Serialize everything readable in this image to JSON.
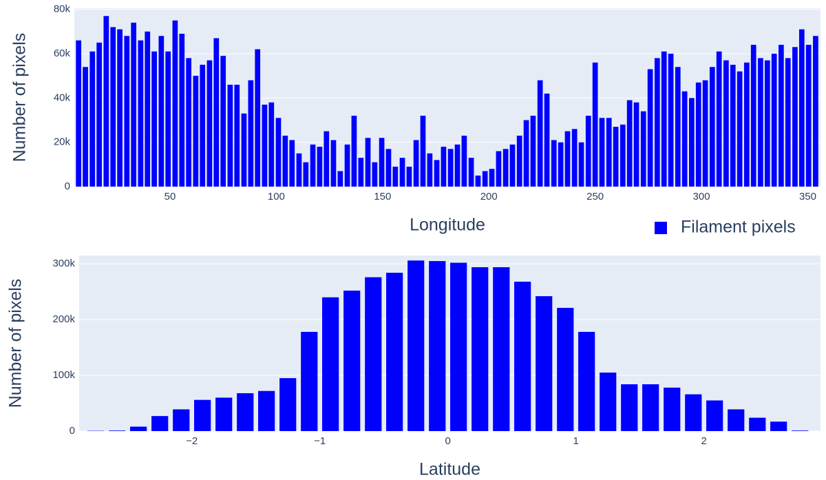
{
  "chart_data": [
    {
      "type": "bar",
      "xlabel": "Longitude",
      "ylabel": "Number of pixels",
      "grid": true,
      "legend": "bottom-right",
      "x": [
        7.0,
        10.2,
        13.5,
        16.7,
        20.0,
        23.2,
        26.4,
        29.7,
        32.9,
        36.2,
        39.4,
        42.6,
        45.9,
        49.1,
        52.4,
        55.6,
        58.8,
        62.1,
        65.3,
        68.6,
        71.8,
        75.0,
        78.3,
        81.5,
        84.8,
        88.0,
        91.2,
        94.5,
        97.7,
        101.0,
        104.2,
        107.4,
        110.7,
        113.9,
        117.2,
        120.4,
        123.6,
        126.9,
        130.1,
        133.4,
        136.6,
        139.8,
        143.1,
        146.3,
        149.6,
        152.8,
        156.0,
        159.3,
        162.5,
        165.8,
        169.0,
        172.2,
        175.5,
        178.7,
        182.0,
        185.2,
        188.4,
        191.7,
        194.9,
        198.2,
        201.4,
        204.6,
        207.9,
        211.1,
        214.4,
        217.6,
        220.8,
        224.1,
        227.3,
        230.6,
        233.8,
        237.0,
        240.3,
        243.5,
        246.8,
        250.0,
        253.2,
        256.5,
        259.7,
        263.0,
        266.2,
        269.4,
        272.7,
        275.9,
        279.2,
        282.4,
        285.6,
        288.9,
        292.1,
        295.4,
        298.6,
        301.8,
        305.1,
        308.3,
        311.6,
        314.8,
        318.0,
        321.3,
        324.5,
        327.8,
        331.0,
        334.2,
        337.5,
        340.7,
        344.0,
        347.2,
        350.4,
        353.7
      ],
      "series": [
        {
          "name": "Filament pixels",
          "color": "#0000ff",
          "values": [
            66000,
            54000,
            61000,
            65000,
            77000,
            72000,
            71000,
            68000,
            74000,
            66000,
            70000,
            61000,
            68000,
            61000,
            75000,
            69000,
            58000,
            50000,
            55000,
            57000,
            67000,
            59000,
            46000,
            46000,
            33000,
            48000,
            62000,
            37000,
            38000,
            31000,
            23000,
            21000,
            15000,
            11000,
            19000,
            18000,
            25000,
            21000,
            7000,
            19000,
            32000,
            13000,
            22000,
            11000,
            22000,
            17000,
            9000,
            13000,
            9000,
            21000,
            32000,
            15000,
            12000,
            18000,
            17000,
            19000,
            23000,
            13000,
            5000,
            7000,
            8000,
            16000,
            17000,
            19000,
            23000,
            30000,
            32000,
            48000,
            42000,
            21000,
            20000,
            25000,
            26000,
            20000,
            32000,
            56000,
            31000,
            31000,
            27000,
            28000,
            39000,
            38000,
            34000,
            53000,
            58000,
            61000,
            60000,
            54000,
            43000,
            40000,
            47000,
            48000,
            54000,
            61000,
            57000,
            55000,
            52000,
            56000,
            64000,
            58000,
            57000,
            60000,
            64000,
            58000,
            63000,
            71000,
            64000,
            68000
          ]
        }
      ],
      "xlim": [
        5,
        356
      ],
      "xticks": [
        50,
        100,
        150,
        200,
        250,
        300,
        350
      ],
      "ylim": [
        0,
        80500
      ],
      "yticks": [
        0,
        {
          "value": 20000,
          "label": "20k"
        },
        {
          "value": 40000,
          "label": "40k"
        },
        {
          "value": 60000,
          "label": "60k"
        },
        {
          "value": 80000,
          "label": "80k"
        }
      ]
    },
    {
      "type": "bar",
      "xlabel": "Latitude",
      "ylabel": "Number of pixels",
      "grid": true,
      "x": [
        -2.75,
        -2.583,
        -2.417,
        -2.25,
        -2.083,
        -1.917,
        -1.75,
        -1.583,
        -1.417,
        -1.25,
        -1.083,
        -0.917,
        -0.75,
        -0.583,
        -0.417,
        -0.25,
        -0.083,
        0.083,
        0.25,
        0.417,
        0.583,
        0.75,
        0.917,
        1.083,
        1.25,
        1.417,
        1.583,
        1.75,
        1.917,
        2.083,
        2.25,
        2.417,
        2.583,
        2.75
      ],
      "series": [
        {
          "color": "#0000ff",
          "values": [
            500,
            1000,
            8000,
            27000,
            39000,
            56000,
            60000,
            68000,
            72000,
            95000,
            178000,
            240000,
            252000,
            276000,
            284000,
            306000,
            305000,
            302000,
            294000,
            294000,
            268000,
            242000,
            221000,
            178000,
            105000,
            84000,
            84000,
            78000,
            66000,
            55000,
            39000,
            24000,
            17000,
            1000
          ]
        }
      ],
      "xlim": [
        -2.88,
        2.91
      ],
      "xticks": [
        {
          "value": -2,
          "label": "−2"
        },
        {
          "value": -1,
          "label": "−1"
        },
        0,
        1,
        2
      ],
      "ylim": [
        0,
        315000
      ],
      "yticks": [
        0,
        {
          "value": 100000,
          "label": "100k"
        },
        {
          "value": 200000,
          "label": "200k"
        },
        {
          "value": 300000,
          "label": "300k"
        }
      ]
    }
  ]
}
